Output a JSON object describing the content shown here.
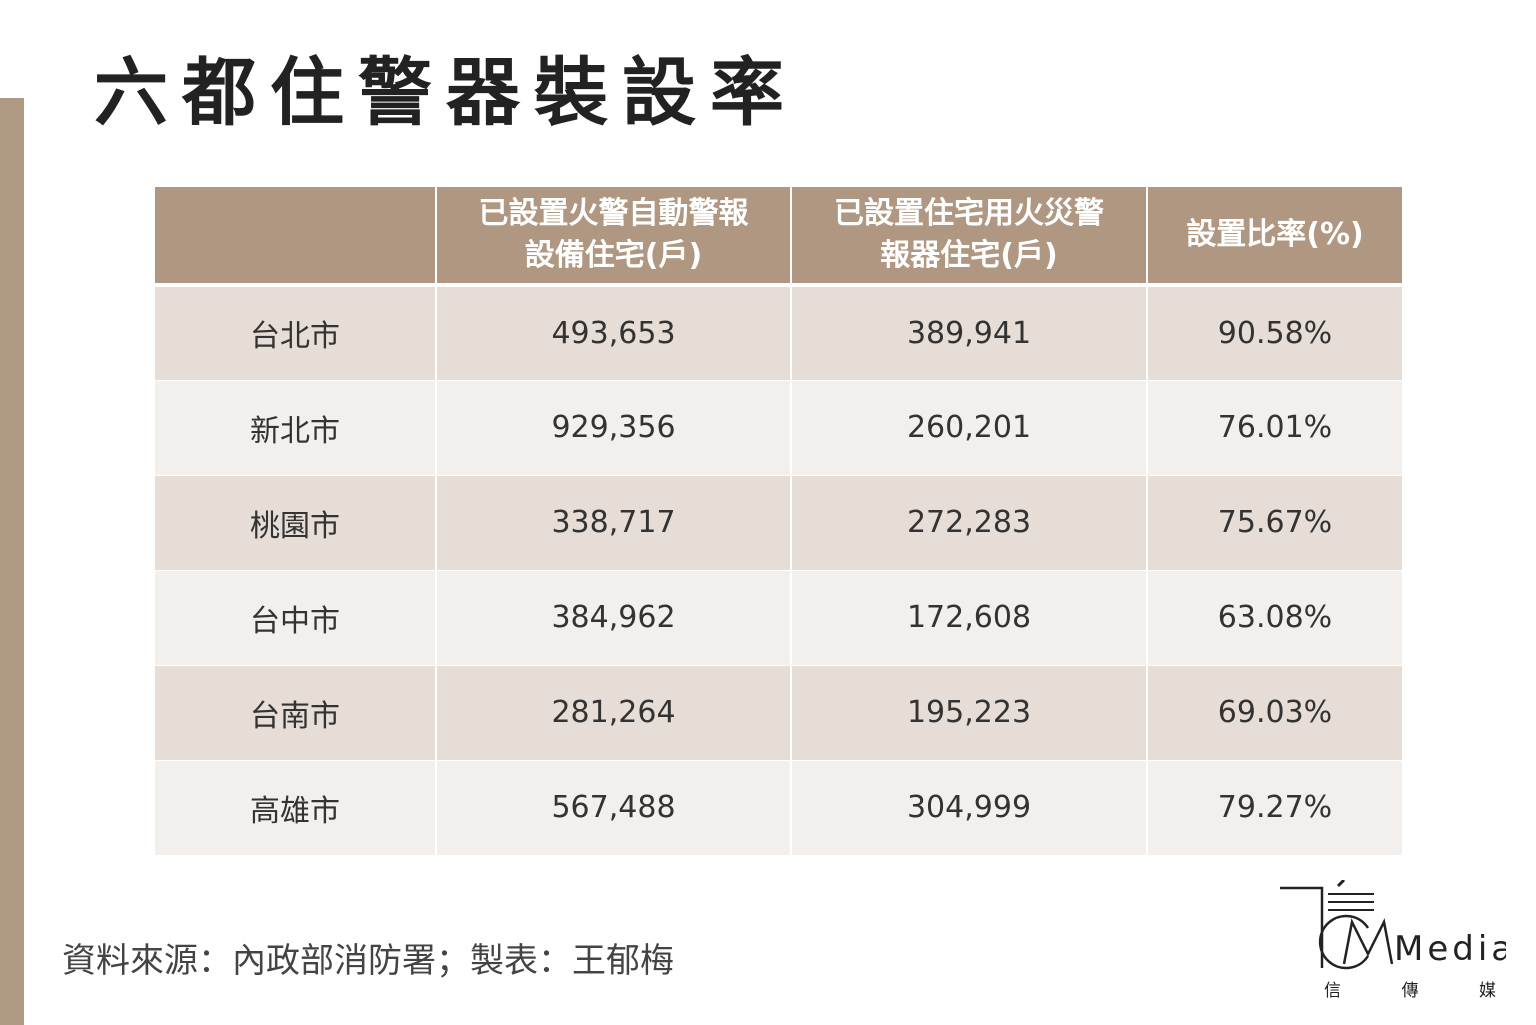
{
  "title": "六都住警器裝設率",
  "chart_data": {
    "type": "table",
    "title": "六都住警器裝設率",
    "columns": [
      "",
      "已設置火警自動警報設備住宅(戶)",
      "已設置住宅用火災警報器住宅(戶)",
      "設置比率(%)"
    ],
    "rows": [
      {
        "city": "台北市",
        "auto_alarm": "493,653",
        "residential_alarm": "389,941",
        "ratio": "90.58%"
      },
      {
        "city": "新北市",
        "auto_alarm": "929,356",
        "residential_alarm": "260,201",
        "ratio": "76.01%"
      },
      {
        "city": "桃園市",
        "auto_alarm": "338,717",
        "residential_alarm": "272,283",
        "ratio": "75.67%"
      },
      {
        "city": "台中市",
        "auto_alarm": "384,962",
        "residential_alarm": "172,608",
        "ratio": "63.08%"
      },
      {
        "city": "台南市",
        "auto_alarm": "281,264",
        "residential_alarm": "195,223",
        "ratio": "69.03%"
      },
      {
        "city": "高雄市",
        "auto_alarm": "567,488",
        "residential_alarm": "304,999",
        "ratio": "79.27%"
      }
    ]
  },
  "header": {
    "col1_line1": "已設置火警自動警報",
    "col1_line2": "設備住宅(戶)",
    "col2_line1": "已設置住宅用火災警",
    "col2_line2": "報器住宅(戶)",
    "col3": "設置比率(%)"
  },
  "source": "資料來源：內政部消防署；製表：王郁梅",
  "logo": {
    "wordmark": "Media",
    "sub": [
      "信",
      "傳",
      "媒"
    ]
  },
  "colors": {
    "accent": "#b09782",
    "row_odd": "#e5ddd6",
    "row_even": "#f2efec",
    "side_bar": "#b19a83"
  }
}
